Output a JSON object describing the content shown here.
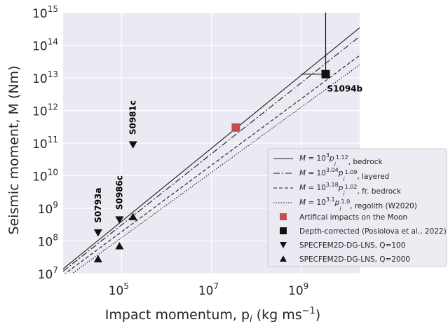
{
  "chart_data": {
    "type": "scatter",
    "xscale": "log",
    "yscale": "log",
    "xlim": [
      5000,
      20000000000
    ],
    "ylim": [
      10000000,
      1000000000000000
    ],
    "xlabel": "Impact momentum, p",
    "xlabel_sub": "i",
    "xlabel_unit": " (kg ms",
    "xlabel_unit_sup": "−1",
    "xlabel_end": ")",
    "ylabel": "Seismic moment, M (Nm)",
    "grid": true,
    "legend_position": "lower-right",
    "x_ticks": [
      {
        "value": 100000,
        "base": "10",
        "exp": "5"
      },
      {
        "value": 10000000,
        "base": "10",
        "exp": "7"
      },
      {
        "value": 1000000000,
        "base": "10",
        "exp": "9"
      }
    ],
    "y_ticks": [
      {
        "value": 10000000,
        "base": "10",
        "exp": "7"
      },
      {
        "value": 100000000,
        "base": "10",
        "exp": "8"
      },
      {
        "value": 1000000000,
        "base": "10",
        "exp": "9"
      },
      {
        "value": 10000000000,
        "base": "10",
        "exp": "10"
      },
      {
        "value": 100000000000,
        "base": "10",
        "exp": "11"
      },
      {
        "value": 1000000000000,
        "base": "10",
        "exp": "12"
      },
      {
        "value": 10000000000000,
        "base": "10",
        "exp": "13"
      },
      {
        "value": 100000000000000,
        "base": "10",
        "exp": "14"
      },
      {
        "value": 1000000000000000,
        "base": "10",
        "exp": "15"
      }
    ],
    "lines": [
      {
        "name": "bedrock",
        "log_a": 3.0,
        "b": 1.12,
        "dash": "solid",
        "legend_parts": [
          {
            "t": "M",
            "i": true
          },
          {
            "t": " = 10"
          },
          {
            "t": "3",
            "sup": true
          },
          {
            "t": "p",
            "i": true
          },
          {
            "t": "i",
            "subsup": true
          },
          {
            "t": "1.12",
            "supsub": true
          },
          {
            "t": ", bedrock"
          }
        ]
      },
      {
        "name": "layered",
        "log_a": 3.04,
        "b": 1.09,
        "dash": "dashdot",
        "legend_parts": [
          {
            "t": "M",
            "i": true
          },
          {
            "t": " = 10"
          },
          {
            "t": "3.04",
            "sup": true
          },
          {
            "t": "p",
            "i": true
          },
          {
            "t": "i",
            "subsup": true
          },
          {
            "t": "1.09",
            "supsub": true
          },
          {
            "t": ", layered"
          }
        ]
      },
      {
        "name": "fr. bedrock",
        "log_a": 3.18,
        "b": 1.02,
        "dash": "dashed",
        "legend_parts": [
          {
            "t": "M",
            "i": true
          },
          {
            "t": " = 10"
          },
          {
            "t": "3.18",
            "sup": true
          },
          {
            "t": "p",
            "i": true
          },
          {
            "t": "i",
            "subsup": true
          },
          {
            "t": "1.02",
            "supsub": true
          },
          {
            "t": ", fr. bedrock"
          }
        ]
      },
      {
        "name": "regolith (W2020)",
        "log_a": 3.1,
        "b": 1.0,
        "dash": "dotted",
        "legend_parts": [
          {
            "t": "M",
            "i": true
          },
          {
            "t": " = 10"
          },
          {
            "t": "3.1",
            "sup": true
          },
          {
            "t": "p",
            "i": true
          },
          {
            "t": "i",
            "subsup": true
          },
          {
            "t": "1.0",
            "supsub": true
          },
          {
            "t": ", regolith (W2020)"
          }
        ]
      }
    ],
    "series": [
      {
        "name": "Artifical impacts on the Moon",
        "marker": "square",
        "color": "#c44e52",
        "points": [
          {
            "x": 35000000,
            "y": 300000000000
          }
        ]
      },
      {
        "name": "Depth-corrected (Posiolova et al., 2022)",
        "marker": "square",
        "color": "#111111",
        "points": [
          {
            "x": 3500000000,
            "y": 13000000000000,
            "label": "S1094b"
          }
        ]
      },
      {
        "name": "SPECFEM2D-DG-LNS, Q=100",
        "marker": "triangle-down",
        "color": "#111111",
        "points": [
          {
            "x": 30000,
            "y": 180000000,
            "label": "S0793a"
          },
          {
            "x": 90000,
            "y": 450000000,
            "label": "S0986c"
          },
          {
            "x": 180000,
            "y": 90000000000,
            "label": "S0981c"
          }
        ]
      },
      {
        "name": "SPECFEM2D-DG-LNS, Q=2000",
        "marker": "triangle-up",
        "color": "#111111",
        "points": [
          {
            "x": 30000,
            "y": 28000000
          },
          {
            "x": 90000,
            "y": 70000000
          },
          {
            "x": 180000,
            "y": 550000000
          }
        ]
      }
    ],
    "errorbar": {
      "x": 3500000000,
      "y_low": 13000000000000,
      "y_high": 1000000000000000,
      "x_low": 1000000000,
      "x_high": 3500000000
    }
  }
}
